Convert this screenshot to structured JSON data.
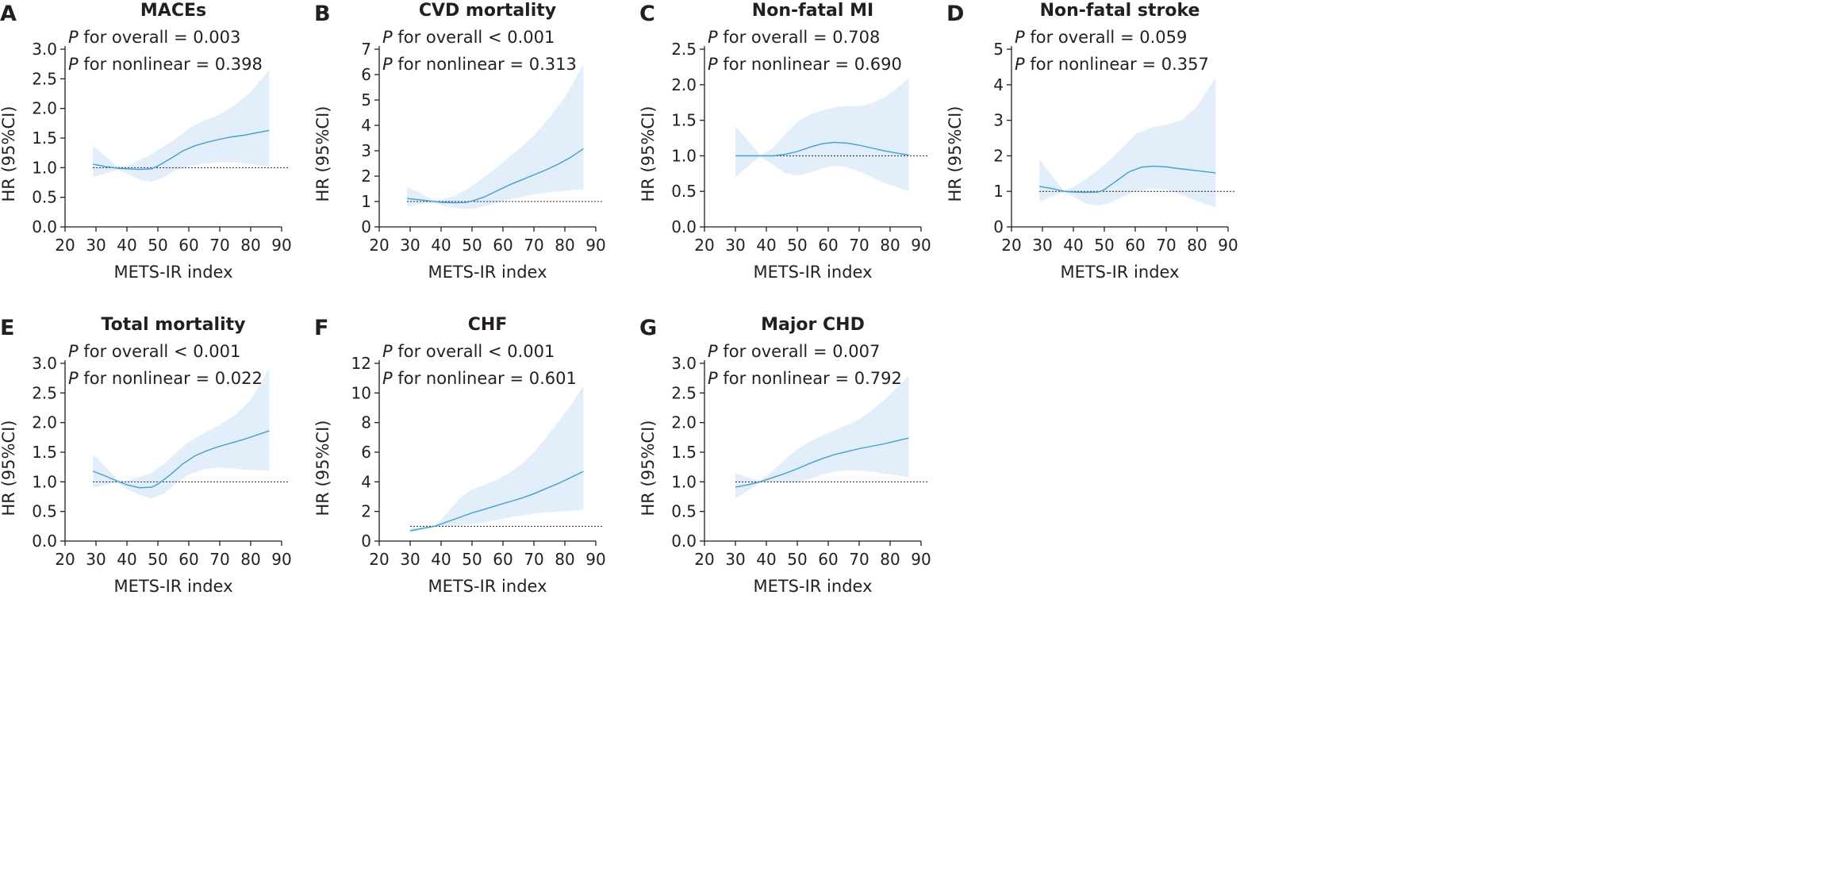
{
  "colors": {
    "band": "#e2effb",
    "curve": "#3f9fd4",
    "text": "#231f20"
  },
  "chart_data": [
    {
      "letter": "A",
      "title": "MACEs",
      "type": "line",
      "stats": {
        "p": "P",
        "overall": " for overall = 0.003",
        "nonlinear": " for nonlinear = 0.398"
      },
      "xlabel": "METS-IR index",
      "ylabel": "HR (95%CI)",
      "xlim": [
        20,
        90
      ],
      "ylim": [
        0,
        3.0
      ],
      "x_ticks": [
        "20",
        "30",
        "40",
        "50",
        "60",
        "70",
        "80",
        "90"
      ],
      "y_ticks": [
        "0.0",
        "0.5",
        "1.0",
        "1.5",
        "2.0",
        "2.5",
        "3.0"
      ],
      "y_tick_values": [
        0,
        0.5,
        1.0,
        1.5,
        2.0,
        2.5,
        3.0
      ],
      "reference_hr": 1.0,
      "curve": {
        "x": [
          29,
          33,
          37,
          40,
          44,
          48,
          50,
          54,
          58,
          62,
          66,
          70,
          74,
          78,
          82,
          86
        ],
        "y": [
          1.06,
          1.02,
          0.99,
          0.98,
          0.97,
          0.98,
          1.03,
          1.15,
          1.28,
          1.37,
          1.43,
          1.48,
          1.52,
          1.55,
          1.59,
          1.63
        ]
      },
      "ci_upper": {
        "x": [
          29,
          33,
          37,
          40,
          44,
          48,
          52,
          56,
          60,
          65,
          70,
          75,
          80,
          86
        ],
        "y": [
          1.37,
          1.19,
          1.02,
          1.03,
          1.13,
          1.23,
          1.36,
          1.5,
          1.66,
          1.8,
          1.9,
          2.06,
          2.28,
          2.65
        ]
      },
      "ci_lower": {
        "x": [
          29,
          33,
          37,
          40,
          44,
          48,
          52,
          56,
          60,
          65,
          70,
          75,
          80,
          86
        ],
        "y": [
          0.84,
          0.9,
          0.96,
          0.9,
          0.8,
          0.76,
          0.84,
          0.96,
          1.02,
          1.07,
          1.09,
          1.09,
          1.06,
          1.02
        ]
      }
    },
    {
      "letter": "B",
      "title": "CVD mortality",
      "type": "line",
      "stats": {
        "p": "P",
        "overall": " for overall < 0.001",
        "nonlinear": " for nonlinear = 0.313"
      },
      "xlabel": "METS-IR index",
      "ylabel": "HR (95%CI)",
      "xlim": [
        20,
        90
      ],
      "ylim": [
        0,
        7
      ],
      "x_ticks": [
        "20",
        "30",
        "40",
        "50",
        "60",
        "70",
        "80",
        "90"
      ],
      "y_ticks": [
        "0",
        "1",
        "2",
        "3",
        "4",
        "5",
        "6",
        "7"
      ],
      "y_tick_values": [
        0,
        1,
        2,
        3,
        4,
        5,
        6,
        7
      ],
      "reference_hr": 1.0,
      "curve": {
        "x": [
          29,
          33,
          37,
          40,
          44,
          48,
          50,
          54,
          58,
          62,
          66,
          70,
          74,
          78,
          82,
          86
        ],
        "y": [
          1.12,
          1.07,
          1.01,
          0.97,
          0.95,
          0.96,
          1.02,
          1.18,
          1.42,
          1.65,
          1.85,
          2.05,
          2.25,
          2.48,
          2.75,
          3.08
        ]
      },
      "ci_upper": {
        "x": [
          29,
          33,
          37,
          40,
          44,
          48,
          52,
          56,
          60,
          65,
          70,
          75,
          80,
          86
        ],
        "y": [
          1.55,
          1.36,
          1.08,
          1.07,
          1.2,
          1.45,
          1.8,
          2.15,
          2.55,
          3.05,
          3.6,
          4.3,
          5.1,
          6.4
        ]
      },
      "ci_lower": {
        "x": [
          29,
          33,
          37,
          40,
          44,
          48,
          52,
          56,
          60,
          65,
          70,
          75,
          80,
          86
        ],
        "y": [
          0.8,
          0.88,
          0.95,
          0.85,
          0.75,
          0.7,
          0.75,
          0.88,
          1.02,
          1.15,
          1.28,
          1.36,
          1.42,
          1.48
        ]
      }
    },
    {
      "letter": "C",
      "title": "Non-fatal MI",
      "type": "line",
      "stats": {
        "p": "P",
        "overall": " for overall = 0.708",
        "nonlinear": " for nonlinear = 0.690"
      },
      "xlabel": "METS-IR index",
      "ylabel": "HR (95%CI)",
      "xlim": [
        20,
        90
      ],
      "ylim": [
        0,
        2.5
      ],
      "x_ticks": [
        "20",
        "30",
        "40",
        "50",
        "60",
        "70",
        "80",
        "90"
      ],
      "y_ticks": [
        "0.0",
        "0.5",
        "1.0",
        "1.5",
        "2.0",
        "2.5"
      ],
      "y_tick_values": [
        0,
        0.5,
        1.0,
        1.5,
        2.0,
        2.5
      ],
      "reference_hr": 1.0,
      "curve": {
        "x": [
          30,
          34,
          38,
          42,
          46,
          50,
          54,
          58,
          62,
          66,
          70,
          74,
          78,
          82,
          86
        ],
        "y": [
          1.0,
          1.0,
          1.0,
          1.0,
          1.02,
          1.06,
          1.12,
          1.17,
          1.19,
          1.18,
          1.15,
          1.11,
          1.07,
          1.04,
          1.01
        ]
      },
      "ci_upper": {
        "x": [
          30,
          34,
          38,
          42,
          46,
          50,
          54,
          58,
          62,
          66,
          70,
          74,
          78,
          82,
          86
        ],
        "y": [
          1.42,
          1.22,
          1.01,
          1.1,
          1.3,
          1.48,
          1.58,
          1.64,
          1.68,
          1.7,
          1.7,
          1.74,
          1.82,
          1.94,
          2.1
        ]
      },
      "ci_lower": {
        "x": [
          30,
          34,
          38,
          42,
          46,
          50,
          54,
          58,
          62,
          66,
          70,
          74,
          78,
          82,
          86
        ],
        "y": [
          0.7,
          0.85,
          0.99,
          0.88,
          0.76,
          0.72,
          0.76,
          0.82,
          0.86,
          0.84,
          0.78,
          0.7,
          0.62,
          0.56,
          0.5
        ]
      }
    },
    {
      "letter": "D",
      "title": "Non-fatal stroke",
      "type": "line",
      "stats": {
        "p": "P",
        "overall": " for overall = 0.059",
        "nonlinear": " for nonlinear = 0.357"
      },
      "xlabel": "METS-IR index",
      "ylabel": "HR (95%CI)",
      "xlim": [
        20,
        90
      ],
      "ylim": [
        0,
        5
      ],
      "x_ticks": [
        "20",
        "30",
        "40",
        "50",
        "60",
        "70",
        "80",
        "90"
      ],
      "y_ticks": [
        "0",
        "1",
        "2",
        "3",
        "4",
        "5"
      ],
      "y_tick_values": [
        0,
        1,
        2,
        3,
        4,
        5
      ],
      "reference_hr": 1.0,
      "curve": {
        "x": [
          29,
          33,
          37,
          40,
          44,
          48,
          50,
          54,
          58,
          62,
          66,
          70,
          74,
          78,
          82,
          86
        ],
        "y": [
          1.14,
          1.08,
          1.0,
          0.98,
          0.97,
          0.98,
          1.05,
          1.3,
          1.55,
          1.68,
          1.71,
          1.69,
          1.64,
          1.6,
          1.56,
          1.52
        ]
      },
      "ci_upper": {
        "x": [
          29,
          33,
          37,
          40,
          44,
          48,
          52,
          56,
          60,
          65,
          70,
          75,
          80,
          86
        ],
        "y": [
          1.9,
          1.45,
          1.02,
          1.12,
          1.35,
          1.6,
          1.9,
          2.25,
          2.6,
          2.8,
          2.87,
          3.0,
          3.4,
          4.2
        ]
      },
      "ci_lower": {
        "x": [
          29,
          33,
          37,
          40,
          44,
          48,
          52,
          56,
          60,
          65,
          70,
          75,
          80,
          86
        ],
        "y": [
          0.7,
          0.85,
          0.99,
          0.85,
          0.65,
          0.6,
          0.68,
          0.85,
          1.0,
          1.07,
          1.05,
          0.9,
          0.72,
          0.55
        ]
      }
    },
    {
      "letter": "E",
      "title": "Total mortality",
      "type": "line",
      "stats": {
        "p": "P",
        "overall": " for overall < 0.001",
        "nonlinear": " for nonlinear = 0.022"
      },
      "xlabel": "METS-IR index",
      "ylabel": "HR (95%CI)",
      "xlim": [
        20,
        90
      ],
      "ylim": [
        0,
        3.0
      ],
      "x_ticks": [
        "20",
        "30",
        "40",
        "50",
        "60",
        "70",
        "80",
        "90"
      ],
      "y_ticks": [
        "0.0",
        "0.5",
        "1.0",
        "1.5",
        "2.0",
        "2.5",
        "3.0"
      ],
      "y_tick_values": [
        0,
        0.5,
        1.0,
        1.5,
        2.0,
        2.5,
        3.0
      ],
      "reference_hr": 1.0,
      "curve": {
        "x": [
          29,
          33,
          37,
          40,
          44,
          48,
          50,
          54,
          58,
          62,
          66,
          70,
          74,
          78,
          82,
          86
        ],
        "y": [
          1.18,
          1.1,
          1.01,
          0.95,
          0.9,
          0.91,
          0.96,
          1.12,
          1.3,
          1.44,
          1.53,
          1.6,
          1.66,
          1.72,
          1.79,
          1.86
        ]
      },
      "ci_upper": {
        "x": [
          29,
          33,
          37,
          40,
          44,
          48,
          52,
          56,
          60,
          65,
          70,
          75,
          80,
          86
        ],
        "y": [
          1.47,
          1.26,
          1.03,
          1.02,
          1.08,
          1.15,
          1.3,
          1.5,
          1.68,
          1.83,
          1.96,
          2.13,
          2.38,
          2.92
        ]
      },
      "ci_lower": {
        "x": [
          29,
          33,
          37,
          40,
          44,
          48,
          52,
          56,
          60,
          65,
          70,
          75,
          80,
          86
        ],
        "y": [
          0.9,
          0.95,
          0.99,
          0.88,
          0.78,
          0.72,
          0.8,
          0.98,
          1.12,
          1.22,
          1.24,
          1.22,
          1.2,
          1.19
        ]
      }
    },
    {
      "letter": "F",
      "title": "CHF",
      "type": "line",
      "stats": {
        "p": "P",
        "overall": " for overall < 0.001",
        "nonlinear": " for nonlinear = 0.601"
      },
      "xlabel": "METS-IR index",
      "ylabel": "HR (95%CI)",
      "xlim": [
        20,
        90
      ],
      "ylim": [
        0,
        12
      ],
      "x_ticks": [
        "20",
        "30",
        "40",
        "50",
        "60",
        "70",
        "80",
        "90"
      ],
      "y_ticks": [
        "0",
        "2",
        "4",
        "6",
        "8",
        "10",
        "12"
      ],
      "y_tick_values": [
        0,
        2,
        4,
        6,
        8,
        10,
        12
      ],
      "reference_hr": 1.0,
      "curve": {
        "x": [
          30,
          34,
          38,
          42,
          46,
          50,
          54,
          58,
          62,
          66,
          70,
          74,
          78,
          82,
          86
        ],
        "y": [
          0.7,
          0.85,
          1.0,
          1.3,
          1.6,
          1.9,
          2.15,
          2.4,
          2.65,
          2.9,
          3.2,
          3.55,
          3.9,
          4.3,
          4.7
        ]
      },
      "ci_upper": {
        "x": [
          30,
          34,
          38,
          42,
          46,
          50,
          54,
          58,
          62,
          66,
          70,
          74,
          78,
          82,
          86
        ],
        "y": [
          0.9,
          0.95,
          1.05,
          1.9,
          2.9,
          3.5,
          3.8,
          4.15,
          4.6,
          5.2,
          6.0,
          7.0,
          8.1,
          9.2,
          10.5
        ]
      },
      "ci_lower": {
        "x": [
          30,
          34,
          38,
          42,
          46,
          50,
          54,
          58,
          62,
          66,
          70,
          74,
          78,
          82,
          86
        ],
        "y": [
          0.55,
          0.78,
          0.98,
          1.0,
          1.05,
          1.15,
          1.28,
          1.42,
          1.58,
          1.72,
          1.85,
          1.93,
          2.0,
          2.05,
          2.1
        ]
      }
    },
    {
      "letter": "G",
      "title": "Major CHD",
      "type": "line",
      "stats": {
        "p": "P",
        "overall": " for overall = 0.007",
        "nonlinear": " for nonlinear = 0.792"
      },
      "xlabel": "METS-IR index",
      "ylabel": "HR (95%CI)",
      "xlim": [
        20,
        90
      ],
      "ylim": [
        0,
        3.0
      ],
      "x_ticks": [
        "20",
        "30",
        "40",
        "50",
        "60",
        "70",
        "80",
        "90"
      ],
      "y_ticks": [
        "0.0",
        "0.5",
        "1.0",
        "1.5",
        "2.0",
        "2.5",
        "3.0"
      ],
      "y_tick_values": [
        0,
        0.5,
        1.0,
        1.5,
        2.0,
        2.5,
        3.0
      ],
      "reference_hr": 1.0,
      "curve": {
        "x": [
          30,
          34,
          38,
          42,
          46,
          50,
          54,
          58,
          62,
          66,
          70,
          74,
          78,
          82,
          86
        ],
        "y": [
          0.91,
          0.95,
          1.0,
          1.07,
          1.14,
          1.22,
          1.31,
          1.39,
          1.46,
          1.51,
          1.56,
          1.6,
          1.64,
          1.69,
          1.74
        ]
      },
      "ci_upper": {
        "x": [
          30,
          34,
          38,
          42,
          46,
          50,
          54,
          58,
          62,
          66,
          70,
          74,
          78,
          82,
          86
        ],
        "y": [
          1.15,
          1.07,
          1.02,
          1.18,
          1.38,
          1.55,
          1.68,
          1.78,
          1.87,
          1.96,
          2.06,
          2.2,
          2.38,
          2.58,
          2.8
        ]
      },
      "ci_lower": {
        "x": [
          30,
          34,
          38,
          42,
          46,
          50,
          54,
          58,
          62,
          66,
          70,
          74,
          78,
          82,
          86
        ],
        "y": [
          0.72,
          0.85,
          0.98,
          1.0,
          0.98,
          0.98,
          1.05,
          1.12,
          1.17,
          1.19,
          1.19,
          1.17,
          1.14,
          1.11,
          1.08
        ]
      }
    }
  ]
}
